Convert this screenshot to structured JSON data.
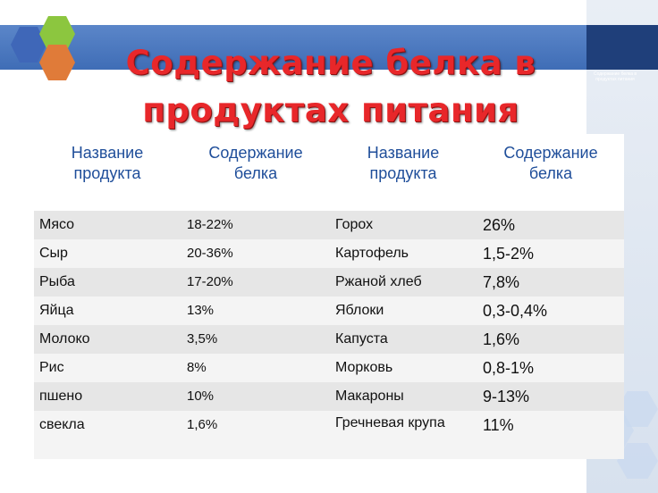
{
  "slide": {
    "title_line1": "Содержание белка в",
    "title_line2": "продуктах питания",
    "side_note": "Содержание белка в продуктах питания"
  },
  "table": {
    "headers": [
      "Название продукта",
      "Содержание белка",
      "Название продукта",
      "Содержание белка"
    ],
    "rows": [
      [
        "Мясо",
        "18-22%",
        "Горох",
        "26%"
      ],
      [
        "Сыр",
        "20-36%",
        "Картофель",
        "1,5-2%"
      ],
      [
        "Рыба",
        "17-20%",
        "Ржаной хлеб",
        "7,8%"
      ],
      [
        "Яйца",
        "13%",
        "Яблоки",
        "0,3-0,4%"
      ],
      [
        "Молоко",
        "3,5%",
        "Капуста",
        "1,6%"
      ],
      [
        "Рис",
        "8%",
        "Морковь",
        "0,8-1%"
      ],
      [
        "пшено",
        "10%",
        "Макароны",
        "9-13%"
      ],
      [
        "свекла",
        "1,6%",
        "Гречневая крупа",
        "11%"
      ]
    ]
  },
  "colors": {
    "title": "#e8272a",
    "header_text": "#1f4e9a",
    "band": "#3f6db6",
    "row_odd": "#e6e6e6",
    "row_even": "#f4f4f4"
  }
}
